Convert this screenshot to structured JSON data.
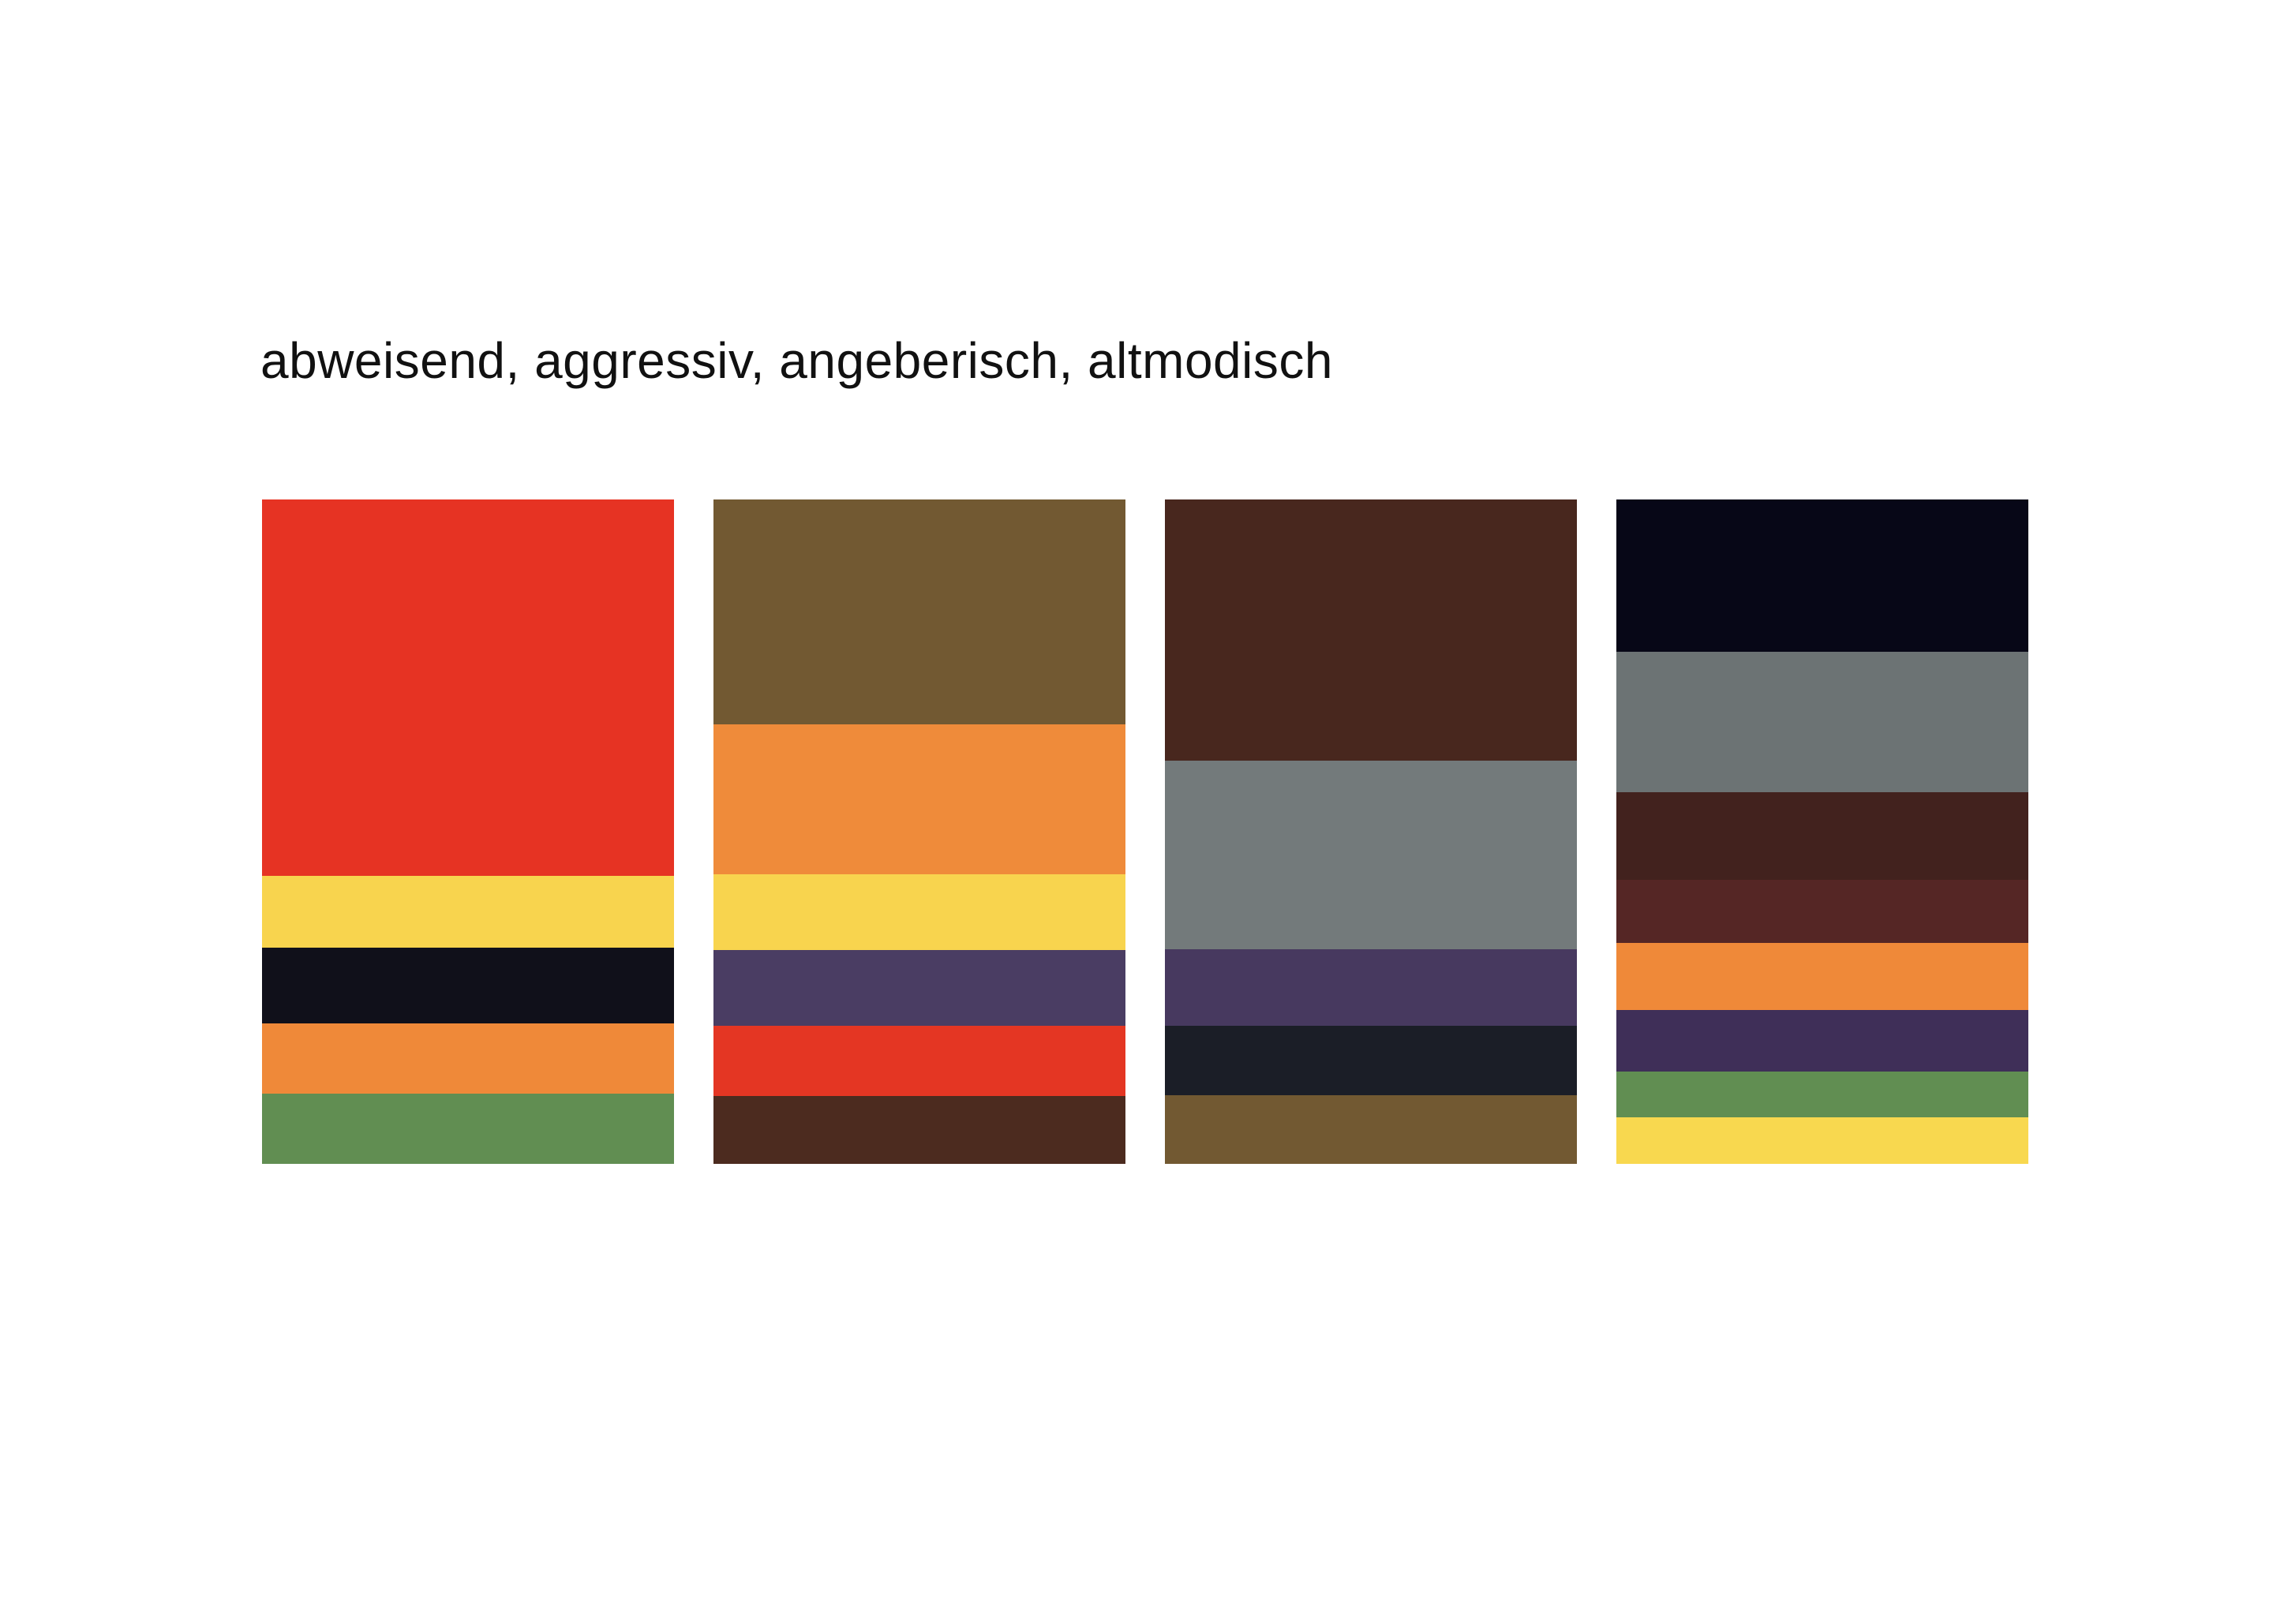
{
  "title": "abweisend, aggressiv, angeberisch, altmodisch",
  "palettes": [
    {
      "swatches": [
        {
          "color": "#E63323",
          "share": 0.567
        },
        {
          "color": "#F8D44E",
          "share": 0.108
        },
        {
          "color": "#10101A",
          "share": 0.114
        },
        {
          "color": "#EF8939",
          "share": 0.106
        },
        {
          "color": "#618E52",
          "share": 0.105
        }
      ]
    },
    {
      "swatches": [
        {
          "color": "#725932",
          "share": 0.339
        },
        {
          "color": "#EF8B3A",
          "share": 0.226
        },
        {
          "color": "#F8D44E",
          "share": 0.114
        },
        {
          "color": "#4A3D63",
          "share": 0.114
        },
        {
          "color": "#E43623",
          "share": 0.106
        },
        {
          "color": "#4C2B1F",
          "share": 0.101
        }
      ]
    },
    {
      "swatches": [
        {
          "color": "#48271E",
          "share": 0.393
        },
        {
          "color": "#737A7B",
          "share": 0.284
        },
        {
          "color": "#47395F",
          "share": 0.115
        },
        {
          "color": "#1B1E27",
          "share": 0.104
        },
        {
          "color": "#725932",
          "share": 0.104
        }
      ]
    },
    {
      "swatches": [
        {
          "color": "#070717",
          "share": 0.229
        },
        {
          "color": "#6C7374",
          "share": 0.211
        },
        {
          "color": "#42221E",
          "share": 0.132
        },
        {
          "color": "#552625",
          "share": 0.095
        },
        {
          "color": "#EF8939",
          "share": 0.101
        },
        {
          "color": "#3F2F58",
          "share": 0.093
        },
        {
          "color": "#618E52",
          "share": 0.069
        },
        {
          "color": "#F8D84F",
          "share": 0.07
        }
      ]
    }
  ]
}
